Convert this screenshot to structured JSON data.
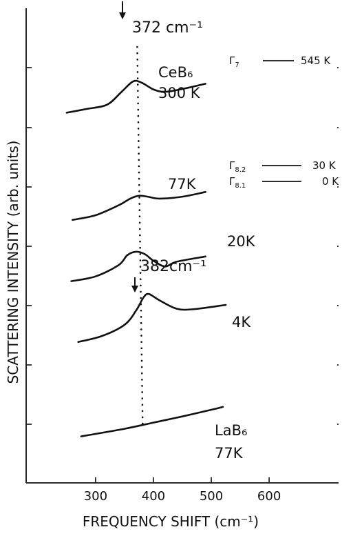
{
  "chart_data": {
    "type": "line",
    "xlabel": "FREQUENCY SHIFT (cm⁻¹)",
    "ylabel": "SCATTERING INTENSITY (arb. units)",
    "xlim": [
      180,
      720
    ],
    "x_ticks": [
      300,
      400,
      500,
      600
    ],
    "x_tick_labels": [
      "300",
      "400",
      "500",
      "600"
    ],
    "ylim": [
      0,
      1
    ],
    "grid": false,
    "series": [
      {
        "name": "CeB6 300K",
        "x": [
          250,
          285,
          320,
          345,
          365,
          380,
          400,
          420,
          450,
          490
        ],
        "y": [
          0.78,
          0.788,
          0.797,
          0.824,
          0.846,
          0.843,
          0.829,
          0.824,
          0.83,
          0.841
        ]
      },
      {
        "name": "77K",
        "x": [
          260,
          300,
          340,
          360,
          375,
          390,
          410,
          450,
          490
        ],
        "y": [
          0.554,
          0.564,
          0.585,
          0.599,
          0.605,
          0.603,
          0.599,
          0.603,
          0.613
        ]
      },
      {
        "name": "20K",
        "x": [
          258,
          300,
          340,
          355,
          370,
          385,
          400,
          420,
          440,
          490
        ],
        "y": [
          0.425,
          0.435,
          0.459,
          0.48,
          0.487,
          0.482,
          0.468,
          0.456,
          0.466,
          0.477
        ]
      },
      {
        "name": "4K",
        "x": [
          270,
          310,
          350,
          370,
          383,
          392,
          410,
          440,
          470,
          525
        ],
        "y": [
          0.297,
          0.309,
          0.333,
          0.363,
          0.391,
          0.398,
          0.385,
          0.367,
          0.366,
          0.375
        ]
      },
      {
        "name": "LaB6 77K",
        "x": [
          275,
          350,
          400,
          450,
          500,
          520
        ],
        "y": [
          0.098,
          0.114,
          0.127,
          0.14,
          0.154,
          0.16
        ]
      }
    ],
    "sample_labels": [
      {
        "lines": [
          "CeB₆",
          "300 K"
        ],
        "series": "CeB6 300K"
      },
      {
        "lines": [
          "77K"
        ],
        "series": "77K"
      },
      {
        "lines": [
          "20K"
        ],
        "series": "20K"
      },
      {
        "lines": [
          "4K"
        ],
        "series": "4K"
      },
      {
        "lines": [
          "LaB₆",
          "77K"
        ],
        "series": "LaB6 77K"
      }
    ],
    "annotations": [
      {
        "text": "372 cm⁻¹",
        "x": 372,
        "type": "arrow"
      },
      {
        "text": "382cm⁻¹",
        "x": 382,
        "type": "arrow"
      }
    ],
    "reference_line": {
      "x": 372,
      "style": "dotted"
    },
    "levels": [
      {
        "label": "Γ",
        "sub": "7",
        "value": "545 K"
      },
      {
        "label": "Γ",
        "sub": "8.2",
        "value": "30 K"
      },
      {
        "label": "Γ",
        "sub": "8.1",
        "value": "0 K"
      }
    ]
  }
}
